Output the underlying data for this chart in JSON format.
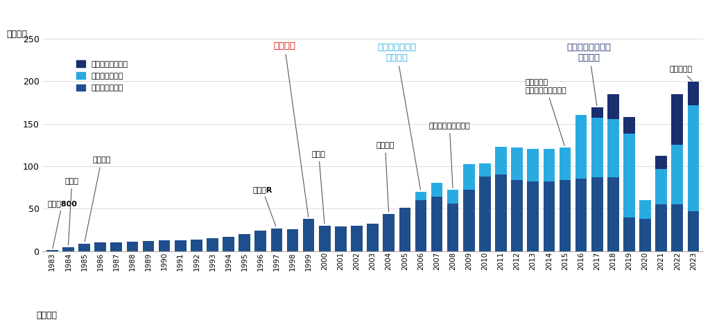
{
  "years": [
    1983,
    1984,
    1985,
    1986,
    1987,
    1988,
    1989,
    1990,
    1991,
    1992,
    1993,
    1994,
    1995,
    1996,
    1997,
    1998,
    1999,
    2000,
    2001,
    2002,
    2003,
    2004,
    2005,
    2006,
    2007,
    2008,
    2009,
    2010,
    2011,
    2012,
    2013,
    2014,
    2015,
    2016,
    2017,
    2018,
    2019,
    2020,
    2021,
    2022,
    2023
  ],
  "gurgaon": [
    1,
    5,
    9,
    10,
    10,
    11,
    12,
    13,
    13,
    14,
    15,
    17,
    20,
    24,
    27,
    26,
    38,
    30,
    29,
    30,
    32,
    44,
    51,
    60,
    64,
    56,
    72,
    88,
    90,
    84,
    82,
    82,
    84,
    85,
    87,
    87,
    40,
    38,
    55,
    55,
    47
  ],
  "manesar": [
    0,
    0,
    0,
    0,
    0,
    0,
    0,
    0,
    0,
    0,
    0,
    0,
    0,
    0,
    0,
    0,
    0,
    0,
    0,
    0,
    0,
    0,
    0,
    10,
    16,
    16,
    30,
    15,
    33,
    38,
    38,
    38,
    38,
    75,
    70,
    68,
    98,
    22,
    42,
    70,
    125
  ],
  "gujarat": [
    0,
    0,
    0,
    0,
    0,
    0,
    0,
    0,
    0,
    0,
    0,
    0,
    0,
    0,
    0,
    0,
    0,
    0,
    0,
    0,
    0,
    0,
    0,
    0,
    0,
    0,
    0,
    0,
    0,
    0,
    0,
    0,
    0,
    0,
    12,
    30,
    20,
    0,
    15,
    60,
    27
  ],
  "colors": {
    "gurgaon": "#1f4e8c",
    "manesar": "#29abe2",
    "gujarat": "#1a2f6e"
  },
  "ylim": [
    0,
    250
  ],
  "yticks": [
    0,
    50,
    100,
    150,
    200,
    250
  ],
  "ylabel": "（万台）",
  "xlabel": "（年度）",
  "legend": [
    {
      "label": "グジャラート工場",
      "color": "#1a2f6e"
    },
    {
      "label": "マネサール工場",
      "color": "#29abe2"
    },
    {
      "label": "グルガオン工場",
      "color": "#1f4e8c"
    }
  ]
}
